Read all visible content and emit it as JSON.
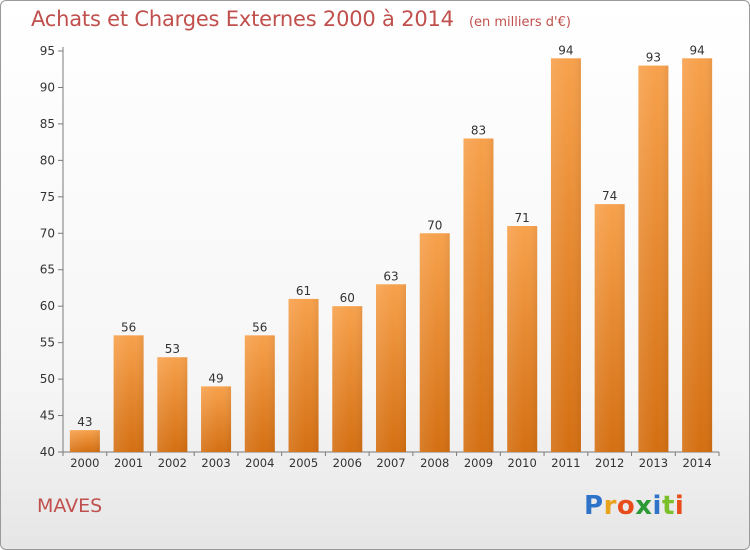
{
  "title": "Achats et Charges Externes 2000 à 2014",
  "unit": "(en milliers d'€)",
  "commune": "MAVES",
  "logo_text": "Proxiti",
  "colors": {
    "title": "#c0504d",
    "bar_light": "#f7a14c",
    "bar_dark": "#d46f12",
    "axis": "#7a7a7a"
  },
  "chart_data": {
    "type": "bar",
    "categories": [
      "2000",
      "2001",
      "2002",
      "2003",
      "2004",
      "2005",
      "2006",
      "2007",
      "2008",
      "2009",
      "2010",
      "2011",
      "2012",
      "2013",
      "2014"
    ],
    "values": [
      43,
      56,
      53,
      49,
      56,
      61,
      60,
      63,
      70,
      83,
      71,
      94,
      74,
      93,
      94
    ],
    "title": "Achats et Charges Externes 2000 à 2014",
    "xlabel": "",
    "ylabel": "",
    "ylim": [
      40,
      95
    ],
    "yticks": [
      40,
      45,
      50,
      55,
      60,
      65,
      70,
      75,
      80,
      85,
      90,
      95
    ],
    "grid": false,
    "data_labels": true
  }
}
